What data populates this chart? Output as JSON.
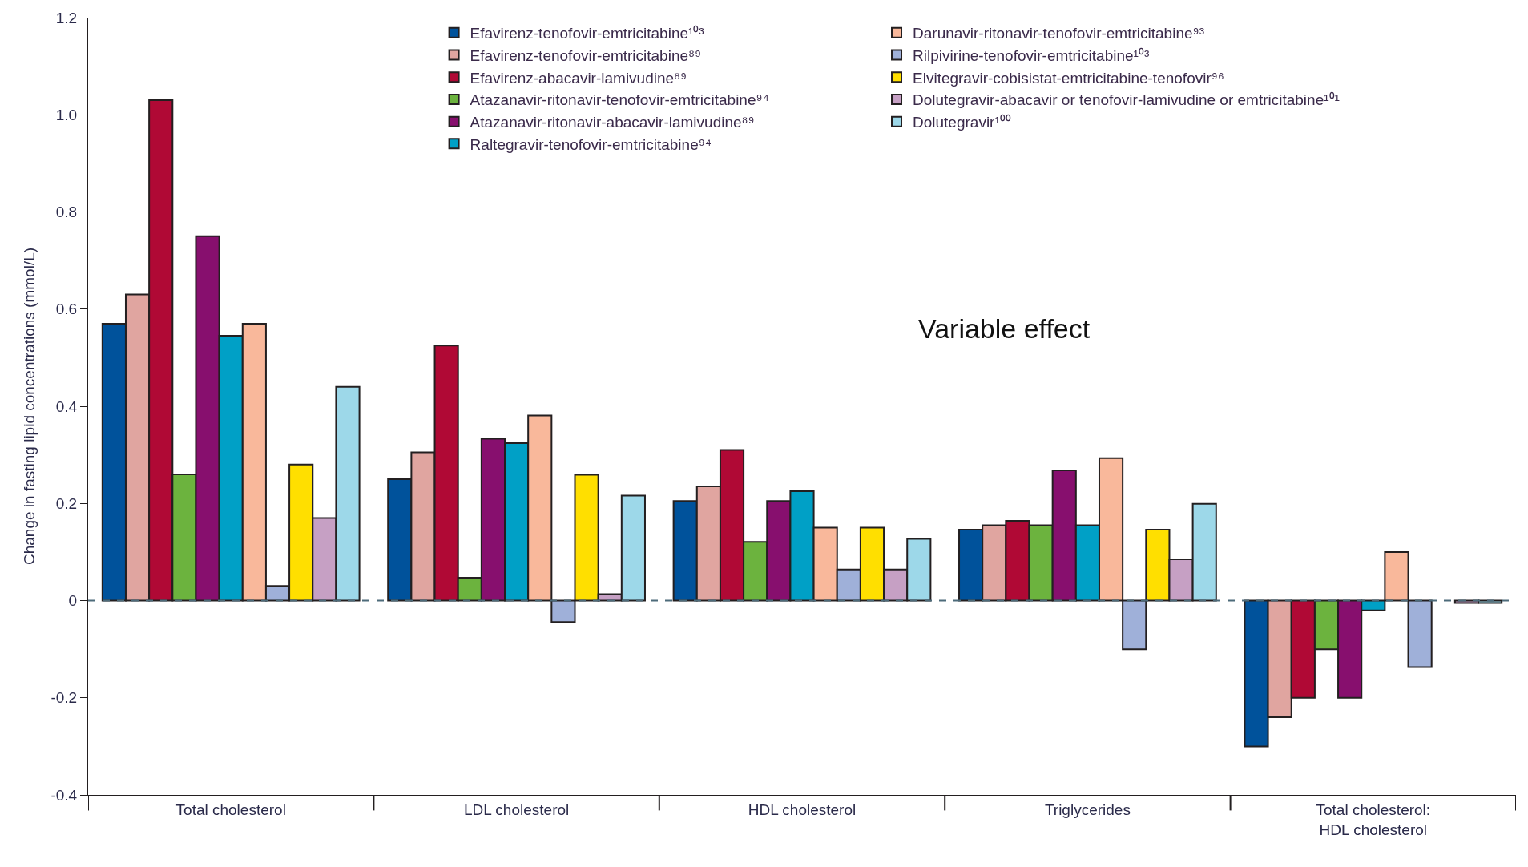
{
  "chart_data": {
    "type": "bar",
    "ylabel": "Change in fasting lipid concentrations (mmol/L)",
    "categories": [
      "Total cholesterol",
      "LDL cholesterol",
      "HDL cholesterol",
      "Triglycerides",
      "Total cholesterol: HDL cholesterol"
    ],
    "series": [
      {
        "name": "Efavirenz-tenofovir-emtricitabine¹⁰³",
        "color": "#00529b",
        "values": [
          0.57,
          0.25,
          0.205,
          0.146,
          -0.3
        ]
      },
      {
        "name": "Efavirenz-tenofovir-emtricitabine⁸⁹",
        "color": "#e0a5a0",
        "values": [
          0.63,
          0.305,
          0.235,
          0.155,
          -0.24
        ]
      },
      {
        "name": "Efavirenz-abacavir-lamivudine⁸⁹",
        "color": "#b00935",
        "values": [
          1.03,
          0.525,
          0.31,
          0.164,
          -0.2
        ]
      },
      {
        "name": "Atazanavir-ritonavir-tenofovir-emtricitabine⁹⁴",
        "color": "#6cb33e",
        "values": [
          0.26,
          0.047,
          0.121,
          0.155,
          -0.1
        ]
      },
      {
        "name": "Atazanavir-ritonavir-abacavir-lamivudine⁸⁹",
        "color": "#870f6e",
        "values": [
          0.75,
          0.333,
          0.205,
          0.268,
          -0.2
        ]
      },
      {
        "name": "Raltegravir-tenofovir-emtricitabine⁹⁴",
        "color": "#00a0c6",
        "values": [
          0.545,
          0.324,
          0.225,
          0.155,
          -0.02
        ]
      },
      {
        "name": "Darunavir-ritonavir-tenofovir-emtricitabine⁹³",
        "color": "#f9b89b",
        "values": [
          0.57,
          0.381,
          0.15,
          0.293,
          0.1
        ]
      },
      {
        "name": "Rilpivirine-tenofovir-emtricitabine¹⁰³",
        "color": "#9fb0d9",
        "values": [
          0.03,
          -0.044,
          0.064,
          -0.1,
          -0.137
        ]
      },
      {
        "name": "Elvitegravir-cobisistat-emtricitabine-tenofovir⁹⁶",
        "color": "#ffdf00",
        "values": [
          0.28,
          0.259,
          0.15,
          0.146,
          null
        ]
      },
      {
        "name": "Dolutegravir-abacavir or tenofovir-lamivudine or emtricitabine¹⁰¹",
        "color": "#c6a0c4",
        "values": [
          0.17,
          0.013,
          0.064,
          0.085,
          -0.005
        ]
      },
      {
        "name": "Dolutegravir¹⁰⁰",
        "color": "#9dd8e9",
        "values": [
          0.44,
          0.216,
          0.127,
          0.199,
          -0.005
        ]
      }
    ],
    "ylim": [
      -0.4,
      1.2
    ],
    "yticks": [
      -0.4,
      -0.2,
      0,
      0.2,
      0.4,
      0.6,
      0.8,
      {
        "value": 1.0,
        "label": "1.0"
      },
      1.2
    ],
    "ref_lines": [
      {
        "axis": "y",
        "value": 0,
        "label": null,
        "color": "#4d6b7a",
        "line_style": "dashed"
      }
    ],
    "annotations": [
      "Variable effect"
    ],
    "legend": "top right"
  }
}
